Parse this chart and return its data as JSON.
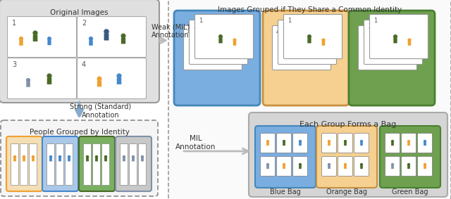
{
  "title_top": "Images Grouped if They Share a Common Identity",
  "label_weak": "Weak (MIL)\nAnnotation",
  "label_strong": "Strong (Standard)\nAnnotation",
  "label_mil": "MIL\nAnnotation",
  "label_original": "Original Images",
  "label_grouped": "People Grouped by Identity",
  "label_each_group": "Each Group Forms a Bag",
  "label_blue_bag": "Blue Bag",
  "label_orange_bag": "Orange Bag",
  "label_green_bag": "Green Bag",
  "bg_color": "#ffffff",
  "outer_left_bg": "#e0e0e0",
  "outer_left_border": "#999999",
  "blue_group_bg": "#7aade0",
  "orange_group_bg": "#f5d090",
  "green_group_bg": "#6ea050",
  "color_orange": "#f0a030",
  "color_blue": "#4488cc",
  "color_green": "#4a6a28",
  "color_grey": "#8090a8",
  "color_darkblue": "#3a5a80",
  "arrow_grey": "#bbbbbb",
  "arrow_blue": "#88aacc",
  "bag_area_bg": "#d5d5d5",
  "bag_area_border": "#aaaaaa"
}
